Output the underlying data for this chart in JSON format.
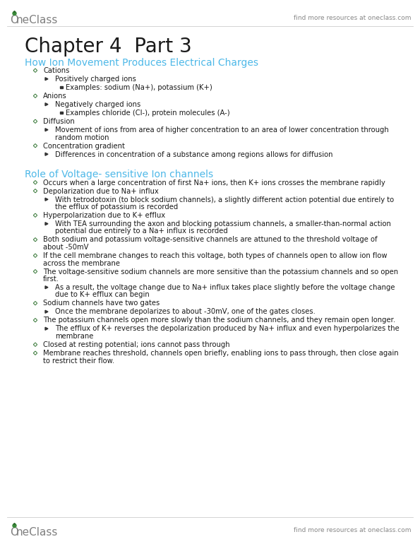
{
  "bg_color": "#ffffff",
  "header_text": "find more resources at oneclass.com",
  "chapter_title": "Chapter 4  Part 3",
  "section1_title": "How Ion Movement Produces Electrical Charges",
  "section1_color": "#4db8e8",
  "section2_title": "Role of Voltage- sensitive Ion channels",
  "section2_color": "#4db8e8",
  "section1_bullets": [
    {
      "level": 0,
      "text": "Cations"
    },
    {
      "level": 1,
      "text": "Positively charged ions"
    },
    {
      "level": 2,
      "text": "Examples: sodium (Na+), potassium (K+)"
    },
    {
      "level": 0,
      "text": "Anions"
    },
    {
      "level": 1,
      "text": "Negatively charged ions"
    },
    {
      "level": 2,
      "text": "Examples chloride (Cl-), protein molecules (A-)"
    },
    {
      "level": 0,
      "text": "Diffusion"
    },
    {
      "level": 1,
      "text": "Movement of ions from area of higher concentration to an area of lower concentration through\nrandom motion"
    },
    {
      "level": 0,
      "text": "Concentration gradient"
    },
    {
      "level": 1,
      "text": "Differences in concentration of a substance among regions allows for diffusion"
    }
  ],
  "section2_bullets": [
    {
      "level": 0,
      "text": "Occurs when a large concentration of first Na+ ions, then K+ ions crosses the membrane rapidly"
    },
    {
      "level": 0,
      "text": "Depolarization due to Na+ influx"
    },
    {
      "level": 1,
      "text": "With tetrodotoxin (to block sodium channels), a slightly different action potential due entirely to\nthe efflux of potassium is recorded"
    },
    {
      "level": 0,
      "text": "Hyperpolarization due to K+ efflux"
    },
    {
      "level": 1,
      "text": "With TEA surrounding the axon and blocking potassium channels, a smaller-than-normal action\npotential due entirely to a Na+ influx is recorded"
    },
    {
      "level": 0,
      "text": "Both sodium and potassium voltage-sensitive channels are attuned to the threshold voltage of\nabout -50mV"
    },
    {
      "level": 0,
      "text": "If the cell membrane changes to reach this voltage, both types of channels open to allow ion flow\nacross the membrane"
    },
    {
      "level": 0,
      "text": "The voltage-sensitive sodium channels are more sensitive than the potassium channels and so open\nfirst."
    },
    {
      "level": 1,
      "text": "As a result, the voltage change due to Na+ influx takes place slightly before the voltage change\ndue to K+ efflux can begin"
    },
    {
      "level": 0,
      "text": "Sodium channels have two gates"
    },
    {
      "level": 1,
      "text": "Once the membrane depolarizes to about -30mV, one of the gates closes."
    },
    {
      "level": 0,
      "text": "The potassium channels open more slowly than the sodium channels, and they remain open longer."
    },
    {
      "level": 1,
      "text": "The efflux of K+ reverses the depolarization produced by Na+ influx and even hyperpolarizes the\nmembrane"
    },
    {
      "level": 0,
      "text": "Closed at resting potential; ions cannot pass through"
    },
    {
      "level": 0,
      "text": "Membrane reaches threshold, channels open briefly, enabling ions to pass through, then close again\nto restrict their flow."
    }
  ],
  "footer_text": "find more resources at oneclass.com",
  "oneclass_color": "#4db8e8",
  "oneclass_text_color": "#808080",
  "text_color": "#1a1a1a",
  "header_color": "#888888"
}
